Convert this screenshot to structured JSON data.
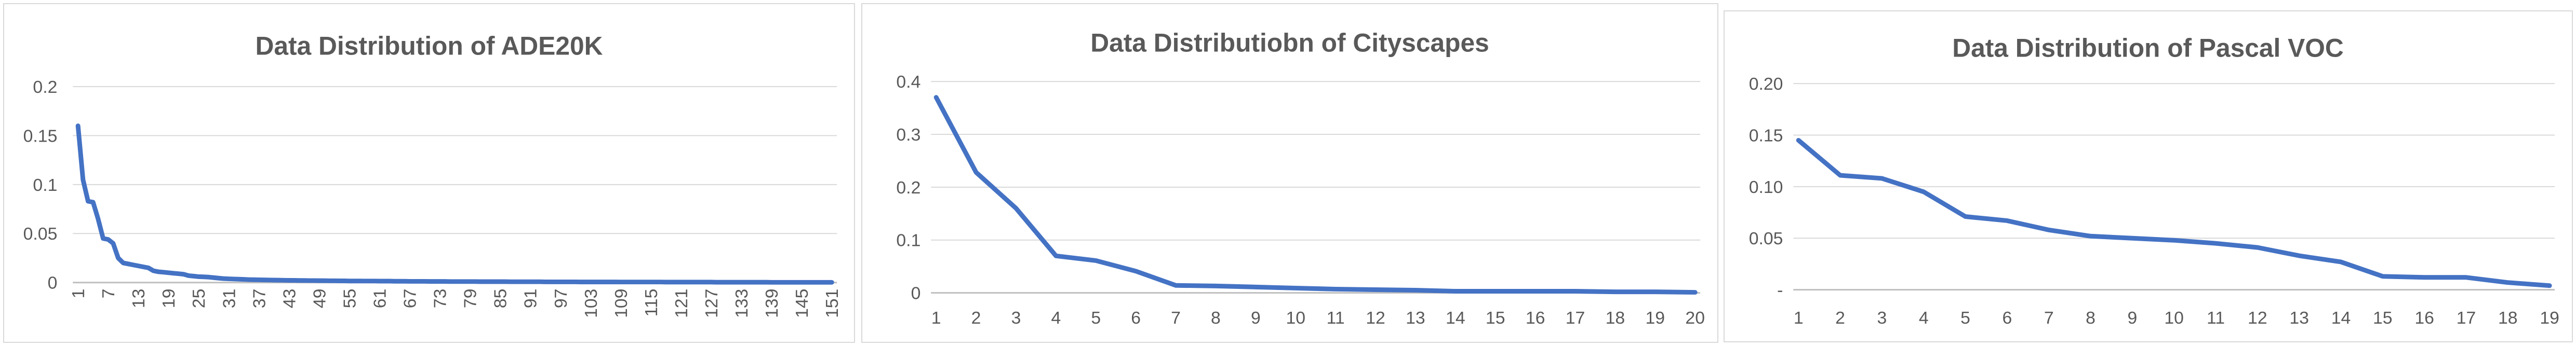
{
  "chart_data": [
    {
      "type": "line",
      "title": "Data Distribution of ADE20K",
      "xlabel": "",
      "ylabel": "",
      "ylim": [
        0,
        0.2
      ],
      "yticks": [
        0,
        0.05,
        0.1,
        0.15,
        0.2
      ],
      "ytick_labels": [
        "0",
        "0.05",
        "0.1",
        "0.15",
        "0.2"
      ],
      "grid": true,
      "categories": [
        "1",
        "2",
        "3",
        "4",
        "5",
        "6",
        "7",
        "8",
        "9",
        "10",
        "11",
        "12",
        "13",
        "14",
        "15",
        "16",
        "17",
        "18",
        "19",
        "20",
        "21",
        "22",
        "23",
        "24",
        "25",
        "26",
        "27",
        "28",
        "29",
        "30",
        "31",
        "32",
        "33",
        "34",
        "35",
        "36",
        "37",
        "38",
        "39",
        "40",
        "41",
        "42",
        "43",
        "44",
        "45",
        "46",
        "47",
        "48",
        "49",
        "50",
        "51",
        "52",
        "53",
        "54",
        "55",
        "56",
        "57",
        "58",
        "59",
        "60",
        "61",
        "62",
        "63",
        "64",
        "65",
        "66",
        "67",
        "68",
        "69",
        "70",
        "71",
        "72",
        "73",
        "74",
        "75",
        "76",
        "77",
        "78",
        "79",
        "80",
        "81",
        "82",
        "83",
        "84",
        "85",
        "86",
        "87",
        "88",
        "89",
        "90",
        "91",
        "92",
        "93",
        "94",
        "95",
        "96",
        "97",
        "98",
        "99",
        "100",
        "101",
        "102",
        "103",
        "104",
        "105",
        "106",
        "107",
        "108",
        "109",
        "110",
        "111",
        "112",
        "113",
        "114",
        "115",
        "116",
        "117",
        "118",
        "119",
        "120",
        "121",
        "122",
        "123",
        "124",
        "125",
        "126",
        "127",
        "128",
        "129",
        "130",
        "131",
        "132",
        "133",
        "134",
        "135",
        "136",
        "137",
        "138",
        "139",
        "140",
        "141",
        "142",
        "143",
        "144",
        "145",
        "146",
        "147",
        "148",
        "149",
        "150",
        "151"
      ],
      "xtick_labels": [
        "1",
        "7",
        "13",
        "19",
        "25",
        "31",
        "37",
        "43",
        "49",
        "55",
        "61",
        "67",
        "73",
        "79",
        "85",
        "91",
        "97",
        "103",
        "109",
        "115",
        "121",
        "127",
        "133",
        "139",
        "145",
        "151"
      ],
      "values": [
        0.16,
        0.105,
        0.083,
        0.082,
        0.065,
        0.045,
        0.044,
        0.04,
        0.025,
        0.02,
        0.019,
        0.018,
        0.017,
        0.016,
        0.015,
        0.012,
        0.011,
        0.0105,
        0.01,
        0.0095,
        0.009,
        0.0085,
        0.007,
        0.0065,
        0.006,
        0.0058,
        0.0055,
        0.005,
        0.0045,
        0.004,
        0.0038,
        0.0036,
        0.0034,
        0.0032,
        0.003,
        0.0029,
        0.0028,
        0.0027,
        0.0026,
        0.0025,
        0.0024,
        0.0023,
        0.0022,
        0.0022,
        0.0021,
        0.0021,
        0.002,
        0.002,
        0.0019,
        0.0019,
        0.0018,
        0.0018,
        0.0017,
        0.0017,
        0.0016,
        0.0016,
        0.0016,
        0.0015,
        0.0015,
        0.0015,
        0.0014,
        0.0014,
        0.0014,
        0.0013,
        0.0013,
        0.0013,
        0.0012,
        0.0012,
        0.0012,
        0.0012,
        0.0011,
        0.0011,
        0.0011,
        0.0011,
        0.001,
        0.001,
        0.001,
        0.001,
        0.001,
        0.001,
        0.0009,
        0.0009,
        0.0009,
        0.0009,
        0.0009,
        0.0009,
        0.0008,
        0.0008,
        0.0008,
        0.0008,
        0.0008,
        0.0008,
        0.0008,
        0.0007,
        0.0007,
        0.0007,
        0.0007,
        0.0007,
        0.0007,
        0.0007,
        0.0006,
        0.0006,
        0.0006,
        0.0006,
        0.0006,
        0.0006,
        0.0006,
        0.0006,
        0.0005,
        0.0005,
        0.0005,
        0.0005,
        0.0005,
        0.0005,
        0.0005,
        0.0005,
        0.0005,
        0.0004,
        0.0004,
        0.0004,
        0.0004,
        0.0004,
        0.0004,
        0.0004,
        0.0004,
        0.0004,
        0.0004,
        0.0003,
        0.0003,
        0.0003,
        0.0003,
        0.0003,
        0.0003,
        0.0003,
        0.0003,
        0.0003,
        0.0003,
        0.0003,
        0.0002,
        0.0002,
        0.0002,
        0.0002,
        0.0002,
        0.0002,
        0.0002,
        0.0002,
        0.0002,
        0.0002,
        0.0002,
        0.0002,
        0.0002
      ]
    },
    {
      "type": "line",
      "title": "Data Distributiobn of Cityscapes",
      "xlabel": "",
      "ylabel": "",
      "ylim": [
        0,
        0.4
      ],
      "yticks": [
        0,
        0.1,
        0.2,
        0.3,
        0.4
      ],
      "ytick_labels": [
        "0",
        "0.1",
        "0.2",
        "0.3",
        "0.4"
      ],
      "grid": true,
      "categories": [
        "1",
        "2",
        "3",
        "4",
        "5",
        "6",
        "7",
        "8",
        "9",
        "10",
        "11",
        "12",
        "13",
        "14",
        "15",
        "16",
        "17",
        "18",
        "19",
        "20"
      ],
      "xtick_labels": [
        "1",
        "2",
        "3",
        "4",
        "5",
        "6",
        "7",
        "8",
        "9",
        "10",
        "11",
        "12",
        "13",
        "14",
        "15",
        "16",
        "17",
        "18",
        "19",
        "20"
      ],
      "values": [
        0.37,
        0.228,
        0.16,
        0.07,
        0.061,
        0.041,
        0.014,
        0.013,
        0.011,
        0.009,
        0.007,
        0.006,
        0.005,
        0.003,
        0.003,
        0.003,
        0.003,
        0.002,
        0.002,
        0.001
      ]
    },
    {
      "type": "line",
      "title": "Data Distribution of Pascal VOC",
      "xlabel": "",
      "ylabel": "",
      "ylim": [
        0,
        0.2
      ],
      "yticks": [
        0,
        0.05,
        0.1,
        0.15,
        0.2
      ],
      "ytick_labels": [
        "-",
        "0.05",
        "0.10",
        "0.15",
        "0.20"
      ],
      "grid": true,
      "categories": [
        "1",
        "2",
        "3",
        "4",
        "5",
        "6",
        "7",
        "8",
        "9",
        "10",
        "11",
        "12",
        "13",
        "14",
        "15",
        "16",
        "17",
        "18",
        "19"
      ],
      "xtick_labels": [
        "1",
        "2",
        "3",
        "4",
        "5",
        "6",
        "7",
        "8",
        "9",
        "10",
        "11",
        "12",
        "13",
        "14",
        "15",
        "16",
        "17",
        "18",
        "19"
      ],
      "values": [
        0.145,
        0.111,
        0.108,
        0.095,
        0.071,
        0.067,
        0.058,
        0.052,
        0.05,
        0.048,
        0.045,
        0.041,
        0.033,
        0.027,
        0.013,
        0.012,
        0.012,
        0.007,
        0.004
      ]
    }
  ]
}
